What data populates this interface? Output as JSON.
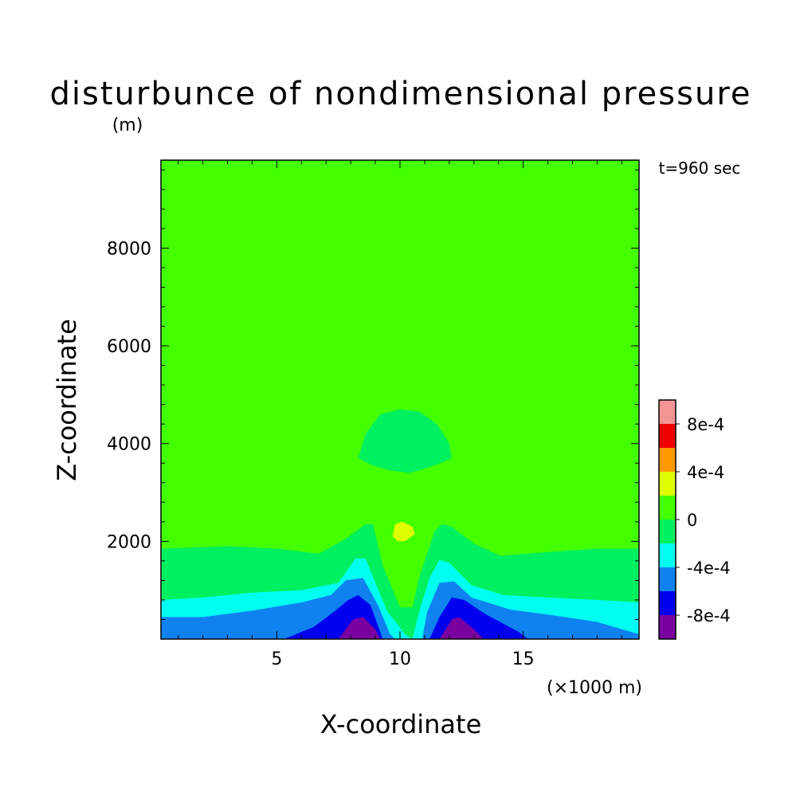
{
  "title": "disturbunce of nondimensional pressure",
  "title_unit": "(m)",
  "time_label": "t=960 sec",
  "colors": {
    "background": "#ffffff",
    "field_base": "#44ff00",
    "levels": {
      "lt_-8e-4": "#7a00a0",
      "-8e-4_to_-6e-4": "#0000ee",
      "-6e-4_to_-4e-4": "#0f82f0",
      "-4e-4_to_-2e-4": "#00fff0",
      "-2e-4_to_0": "#00f060",
      "0_to_2e-4": "#44ff00",
      "2e-4_to_4e-4": "#ddff00",
      "4e-4_to_6e-4": "#ff9900",
      "6e-4_to_8e-4": "#ee0000",
      "gt_8e-4": "#f59494"
    }
  },
  "chart_data": {
    "type": "heatmap",
    "title": "disturbunce of nondimensional pressure",
    "xlabel": "X-coordinate",
    "xunit": "(×1000 m)",
    "ylabel": "Z-coordinate",
    "yunit": "(m)",
    "xlim": [
      0.3,
      19.7
    ],
    "ylim": [
      0,
      9800
    ],
    "x_ticks": [
      5,
      10,
      15
    ],
    "y_ticks": [
      2000,
      4000,
      6000,
      8000
    ],
    "grid": false,
    "annotation": "t=960 sec",
    "colorbar": {
      "bands": [
        {
          "from": null,
          "to": -0.0008,
          "color": "#7a00a0"
        },
        {
          "from": -0.0008,
          "to": -0.0006,
          "color": "#0000ee"
        },
        {
          "from": -0.0006,
          "to": -0.0004,
          "color": "#0f82f0"
        },
        {
          "from": -0.0004,
          "to": -0.0002,
          "color": "#00fff0"
        },
        {
          "from": -0.0002,
          "to": 0,
          "color": "#00f060"
        },
        {
          "from": 0,
          "to": 0.0002,
          "color": "#44ff00"
        },
        {
          "from": 0.0002,
          "to": 0.0004,
          "color": "#ddff00"
        },
        {
          "from": 0.0004,
          "to": 0.0006,
          "color": "#ff9900"
        },
        {
          "from": 0.0006,
          "to": 0.0008,
          "color": "#ee0000"
        },
        {
          "from": 0.0008,
          "to": null,
          "color": "#f59494"
        }
      ],
      "labels": [
        "-8e-4",
        "-4e-4",
        "0",
        "4e-4",
        "8e-4"
      ]
    },
    "regions": [
      {
        "name": "near-surface-lt-2e-4",
        "color": "#00f060",
        "points": [
          [
            0.3,
            0
          ],
          [
            0.3,
            1850
          ],
          [
            3,
            1900
          ],
          [
            5,
            1850
          ],
          [
            6.7,
            1750
          ],
          [
            7.8,
            2050
          ],
          [
            8.6,
            2350
          ],
          [
            8.9,
            2350
          ],
          [
            9.3,
            1500
          ],
          [
            10.0,
            650
          ],
          [
            10.5,
            650
          ],
          [
            10.8,
            1300
          ],
          [
            11.4,
            2200
          ],
          [
            11.7,
            2350
          ],
          [
            12.1,
            2300
          ],
          [
            13,
            1950
          ],
          [
            14.1,
            1700
          ],
          [
            16,
            1780
          ],
          [
            18,
            1850
          ],
          [
            19.7,
            1850
          ],
          [
            19.7,
            0
          ]
        ]
      },
      {
        "name": "near-surface-lt-4e-4",
        "color": "#00fff0",
        "points": [
          [
            0.3,
            0
          ],
          [
            0.3,
            800
          ],
          [
            2,
            850
          ],
          [
            4,
            950
          ],
          [
            6,
            1000
          ],
          [
            7.5,
            1150
          ],
          [
            8.2,
            1650
          ],
          [
            8.6,
            1650
          ],
          [
            9.0,
            1150
          ],
          [
            9.5,
            550
          ],
          [
            9.9,
            300
          ],
          [
            10.2,
            100
          ],
          [
            10.5,
            0
          ],
          [
            10.8,
            600
          ],
          [
            11.2,
            1250
          ],
          [
            11.6,
            1620
          ],
          [
            12.0,
            1560
          ],
          [
            12.9,
            1100
          ],
          [
            14.2,
            900
          ],
          [
            16,
            850
          ],
          [
            18,
            800
          ],
          [
            19.7,
            750
          ],
          [
            19.7,
            0
          ]
        ]
      },
      {
        "name": "near-surface-lt-6e-4",
        "color": "#0f82f0",
        "points": [
          [
            0.3,
            0
          ],
          [
            0.3,
            450
          ],
          [
            2,
            450
          ],
          [
            4,
            580
          ],
          [
            6,
            750
          ],
          [
            7.2,
            900
          ],
          [
            7.8,
            1200
          ],
          [
            8.5,
            1250
          ],
          [
            9.1,
            700
          ],
          [
            9.6,
            100
          ],
          [
            9.8,
            0
          ],
          [
            10.9,
            0
          ],
          [
            11.1,
            550
          ],
          [
            11.6,
            1150
          ],
          [
            12.2,
            1180
          ],
          [
            12.9,
            850
          ],
          [
            14.5,
            600
          ],
          [
            16,
            500
          ],
          [
            18,
            350
          ],
          [
            19.7,
            100
          ],
          [
            19.7,
            0
          ]
        ]
      },
      {
        "name": "near-surface-lt-8e-4",
        "color": "#0000ee",
        "points": [
          [
            5.3,
            0
          ],
          [
            6.5,
            250
          ],
          [
            7.3,
            550
          ],
          [
            7.9,
            800
          ],
          [
            8.3,
            900
          ],
          [
            8.8,
            700
          ],
          [
            9.3,
            0
          ]
        ]
      },
      {
        "name": "near-surface-lt-8e-4-right",
        "color": "#0000ee",
        "points": [
          [
            11.2,
            0
          ],
          [
            11.6,
            450
          ],
          [
            12.1,
            850
          ],
          [
            12.6,
            800
          ],
          [
            13.5,
            500
          ],
          [
            14.8,
            150
          ],
          [
            15.2,
            0
          ]
        ]
      },
      {
        "name": "near-surface-min-left",
        "color": "#7a00a0",
        "points": [
          [
            7.5,
            0
          ],
          [
            8.1,
            400
          ],
          [
            8.5,
            450
          ],
          [
            9.0,
            200
          ],
          [
            9.2,
            0
          ]
        ]
      },
      {
        "name": "near-surface-min-right",
        "color": "#7a00a0",
        "points": [
          [
            11.6,
            0
          ],
          [
            12.1,
            400
          ],
          [
            12.4,
            450
          ],
          [
            13.0,
            200
          ],
          [
            13.4,
            0
          ]
        ]
      },
      {
        "name": "mid-level-negative-bubble",
        "color": "#00f060",
        "points": [
          [
            8.3,
            3700
          ],
          [
            8.6,
            4200
          ],
          [
            9.2,
            4600
          ],
          [
            10,
            4700
          ],
          [
            10.8,
            4650
          ],
          [
            11.5,
            4400
          ],
          [
            12.0,
            4000
          ],
          [
            12.1,
            3700
          ],
          [
            11.4,
            3550
          ],
          [
            10.4,
            3400
          ],
          [
            9.6,
            3450
          ],
          [
            8.9,
            3550
          ]
        ]
      },
      {
        "name": "positive-cell",
        "color": "#ddff00",
        "points": [
          [
            9.7,
            2100
          ],
          [
            9.8,
            2350
          ],
          [
            10.1,
            2400
          ],
          [
            10.5,
            2300
          ],
          [
            10.6,
            2150
          ],
          [
            10.2,
            2000
          ],
          [
            9.9,
            2000
          ]
        ]
      }
    ]
  }
}
